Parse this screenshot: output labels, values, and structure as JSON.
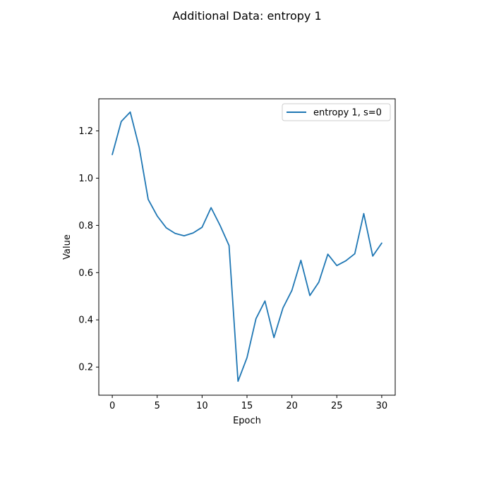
{
  "figure": {
    "title": "Additional Data: entropy 1"
  },
  "chart_data": {
    "type": "line",
    "title": "Additional Data: entropy 1",
    "xlabel": "Epoch",
    "ylabel": "Value",
    "xlim": [
      -1.5,
      31.5
    ],
    "ylim": [
      0.081,
      1.336
    ],
    "grid": false,
    "legend_position": "top-right",
    "x_ticks": [
      0,
      5,
      10,
      15,
      20,
      25,
      30
    ],
    "x_tick_labels": [
      "0",
      "5",
      "10",
      "15",
      "20",
      "25",
      "30"
    ],
    "y_ticks": [
      0.2,
      0.4,
      0.6,
      0.8,
      1.0,
      1.2
    ],
    "y_tick_labels": [
      "0.2",
      "0.4",
      "0.6",
      "0.8",
      "1.0",
      "1.2"
    ],
    "series": [
      {
        "name": "entropy 1, s=0",
        "color": "#1f77b4",
        "x": [
          0,
          1,
          2,
          3,
          4,
          5,
          6,
          7,
          8,
          9,
          10,
          11,
          12,
          13,
          14,
          15,
          16,
          17,
          18,
          19,
          20,
          21,
          22,
          23,
          24,
          25,
          26,
          27,
          28,
          29,
          30
        ],
        "y": [
          1.1,
          1.24,
          1.28,
          1.13,
          0.91,
          0.84,
          0.79,
          0.766,
          0.756,
          0.768,
          0.792,
          0.875,
          0.8,
          0.715,
          0.14,
          0.24,
          0.405,
          0.48,
          0.325,
          0.45,
          0.525,
          0.652,
          0.503,
          0.56,
          0.678,
          0.63,
          0.65,
          0.68,
          0.85,
          0.67,
          0.725
        ]
      }
    ]
  }
}
